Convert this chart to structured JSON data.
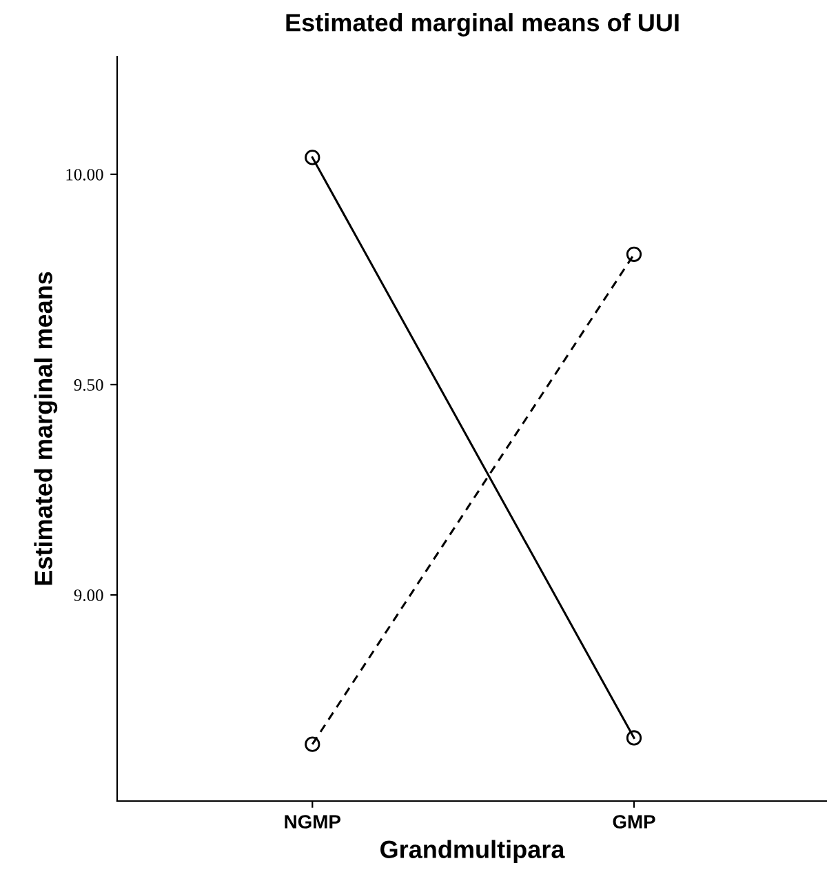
{
  "chart_data": {
    "type": "line",
    "title": "Estimated marginal means of UUI",
    "xlabel": "Grandmultipara",
    "ylabel": "Estimated marginal means",
    "categories": [
      "NGMP",
      "GMP"
    ],
    "series": [
      {
        "color": "#000000",
        "line_style": "solid",
        "values": [
          10.04,
          8.66
        ]
      },
      {
        "color": "#000000",
        "line_style": "dashed",
        "values": [
          8.645,
          9.81
        ]
      }
    ],
    "marker": "circle",
    "ylim": [
      8.51,
      10.28
    ],
    "yticks": [
      {
        "value": 9,
        "label": "9.00"
      },
      {
        "value": 9.5,
        "label": "9.50"
      },
      {
        "value": 10,
        "label": "10.00"
      }
    ],
    "grid": false,
    "legend": false
  }
}
